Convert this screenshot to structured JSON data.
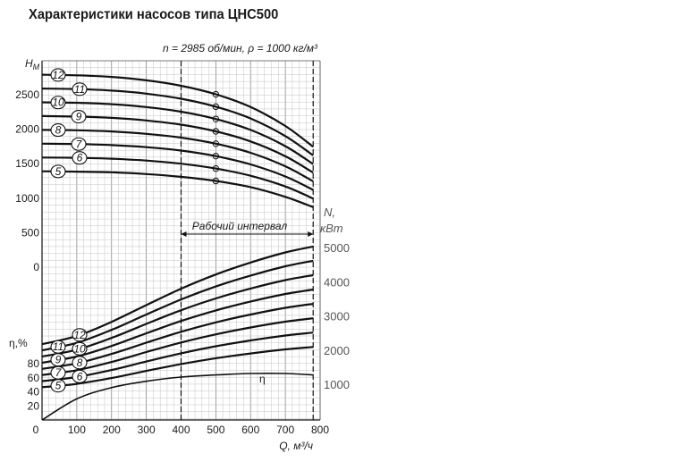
{
  "title": "Характеристики насосов типа ЦНС500",
  "conditions": "n = 2985 об/мин, ρ = 1000 кг/м³",
  "work_range_label": "Рабочий интервал",
  "chart_data": {
    "type": "line",
    "title": "Характеристики насосов типа ЦНС500",
    "x_axis": {
      "label": "Q, м³/ч",
      "range": [
        0,
        800
      ],
      "ticks": [
        "0",
        "100",
        "200",
        "300",
        "400",
        "500",
        "600",
        "700",
        "800"
      ]
    },
    "head_axis": {
      "label": "Hм",
      "range": [
        0,
        2800
      ],
      "ticks": [
        "0",
        "500",
        "1000",
        "1500",
        "2000",
        "2500"
      ]
    },
    "power_axis": {
      "label": "N, кВт",
      "range": [
        1000,
        5000
      ],
      "ticks": [
        "1000",
        "2000",
        "3000",
        "4000",
        "5000"
      ]
    },
    "efficiency_axis": {
      "label": "η, %",
      "range": [
        0,
        80
      ],
      "ticks": [
        "20",
        "40",
        "60",
        "80"
      ]
    },
    "work_range": [
      400,
      780
    ],
    "grid": true,
    "head_series": [
      {
        "name": "5",
        "x": [
          0,
          100,
          200,
          300,
          400,
          500,
          600,
          700,
          780
        ],
        "y": [
          1390,
          1385,
          1375,
          1350,
          1310,
          1250,
          1160,
          1020,
          870
        ]
      },
      {
        "name": "6",
        "x": [
          0,
          100,
          200,
          300,
          400,
          500,
          600,
          700,
          780
        ],
        "y": [
          1590,
          1585,
          1572,
          1545,
          1500,
          1430,
          1325,
          1170,
          995
        ]
      },
      {
        "name": "7",
        "x": [
          0,
          100,
          200,
          300,
          400,
          500,
          600,
          700,
          780
        ],
        "y": [
          1790,
          1785,
          1770,
          1740,
          1690,
          1610,
          1490,
          1315,
          1120
        ]
      },
      {
        "name": "8",
        "x": [
          0,
          100,
          200,
          300,
          400,
          500,
          600,
          700,
          780
        ],
        "y": [
          1990,
          1984,
          1967,
          1933,
          1878,
          1790,
          1658,
          1462,
          1245
        ]
      },
      {
        "name": "9",
        "x": [
          0,
          100,
          200,
          300,
          400,
          500,
          600,
          700,
          780
        ],
        "y": [
          2190,
          2183,
          2165,
          2127,
          2066,
          1969,
          1823,
          1608,
          1370
        ]
      },
      {
        "name": "10",
        "x": [
          0,
          100,
          200,
          300,
          400,
          500,
          600,
          700,
          780
        ],
        "y": [
          2390,
          2383,
          2363,
          2321,
          2254,
          2148,
          1989,
          1754,
          1495
        ]
      },
      {
        "name": "11",
        "x": [
          0,
          100,
          200,
          300,
          400,
          500,
          600,
          700,
          780
        ],
        "y": [
          2590,
          2582,
          2560,
          2515,
          2442,
          2327,
          2155,
          1900,
          1620
        ]
      },
      {
        "name": "12",
        "x": [
          0,
          100,
          200,
          300,
          400,
          500,
          600,
          700,
          780
        ],
        "y": [
          2790,
          2781,
          2758,
          2709,
          2630,
          2506,
          2321,
          2047,
          1745
        ]
      }
    ],
    "power_series": [
      {
        "name": "5",
        "x": [
          0,
          100,
          200,
          300,
          400,
          500,
          600,
          700,
          780
        ],
        "y": [
          910,
          1010,
          1180,
          1390,
          1590,
          1760,
          1900,
          2020,
          2090
        ]
      },
      {
        "name": "6",
        "x": [
          0,
          100,
          200,
          300,
          400,
          500,
          600,
          700,
          780
        ],
        "y": [
          1090,
          1210,
          1415,
          1665,
          1905,
          2110,
          2280,
          2425,
          2510
        ]
      },
      {
        "name": "7",
        "x": [
          0,
          100,
          200,
          300,
          400,
          500,
          600,
          700,
          780
        ],
        "y": [
          1270,
          1410,
          1650,
          1940,
          2220,
          2460,
          2660,
          2830,
          2930
        ]
      },
      {
        "name": "8",
        "x": [
          0,
          100,
          200,
          300,
          400,
          500,
          600,
          700,
          780
        ],
        "y": [
          1450,
          1610,
          1885,
          2215,
          2535,
          2810,
          3040,
          3235,
          3350
        ]
      },
      {
        "name": "9",
        "x": [
          0,
          100,
          200,
          300,
          400,
          500,
          600,
          700,
          780
        ],
        "y": [
          1630,
          1810,
          2120,
          2490,
          2850,
          3160,
          3420,
          3640,
          3770
        ]
      },
      {
        "name": "10",
        "x": [
          0,
          100,
          200,
          300,
          400,
          500,
          600,
          700,
          780
        ],
        "y": [
          1810,
          2010,
          2355,
          2765,
          3165,
          3510,
          3800,
          4045,
          4190
        ]
      },
      {
        "name": "11",
        "x": [
          0,
          100,
          200,
          300,
          400,
          500,
          600,
          700,
          780
        ],
        "y": [
          1990,
          2210,
          2590,
          3040,
          3480,
          3860,
          4180,
          4450,
          4610
        ]
      },
      {
        "name": "12",
        "x": [
          0,
          100,
          200,
          300,
          400,
          500,
          600,
          700,
          780
        ],
        "y": [
          2170,
          2410,
          2825,
          3315,
          3795,
          4210,
          4560,
          4855,
          5030
        ]
      }
    ],
    "efficiency_series": {
      "name": "η",
      "x": [
        0,
        100,
        200,
        300,
        400,
        500,
        600,
        700,
        780
      ],
      "y": [
        0,
        30,
        46,
        55,
        61,
        64,
        66,
        66,
        64
      ]
    },
    "marker_points": {
      "x": 500
    }
  }
}
